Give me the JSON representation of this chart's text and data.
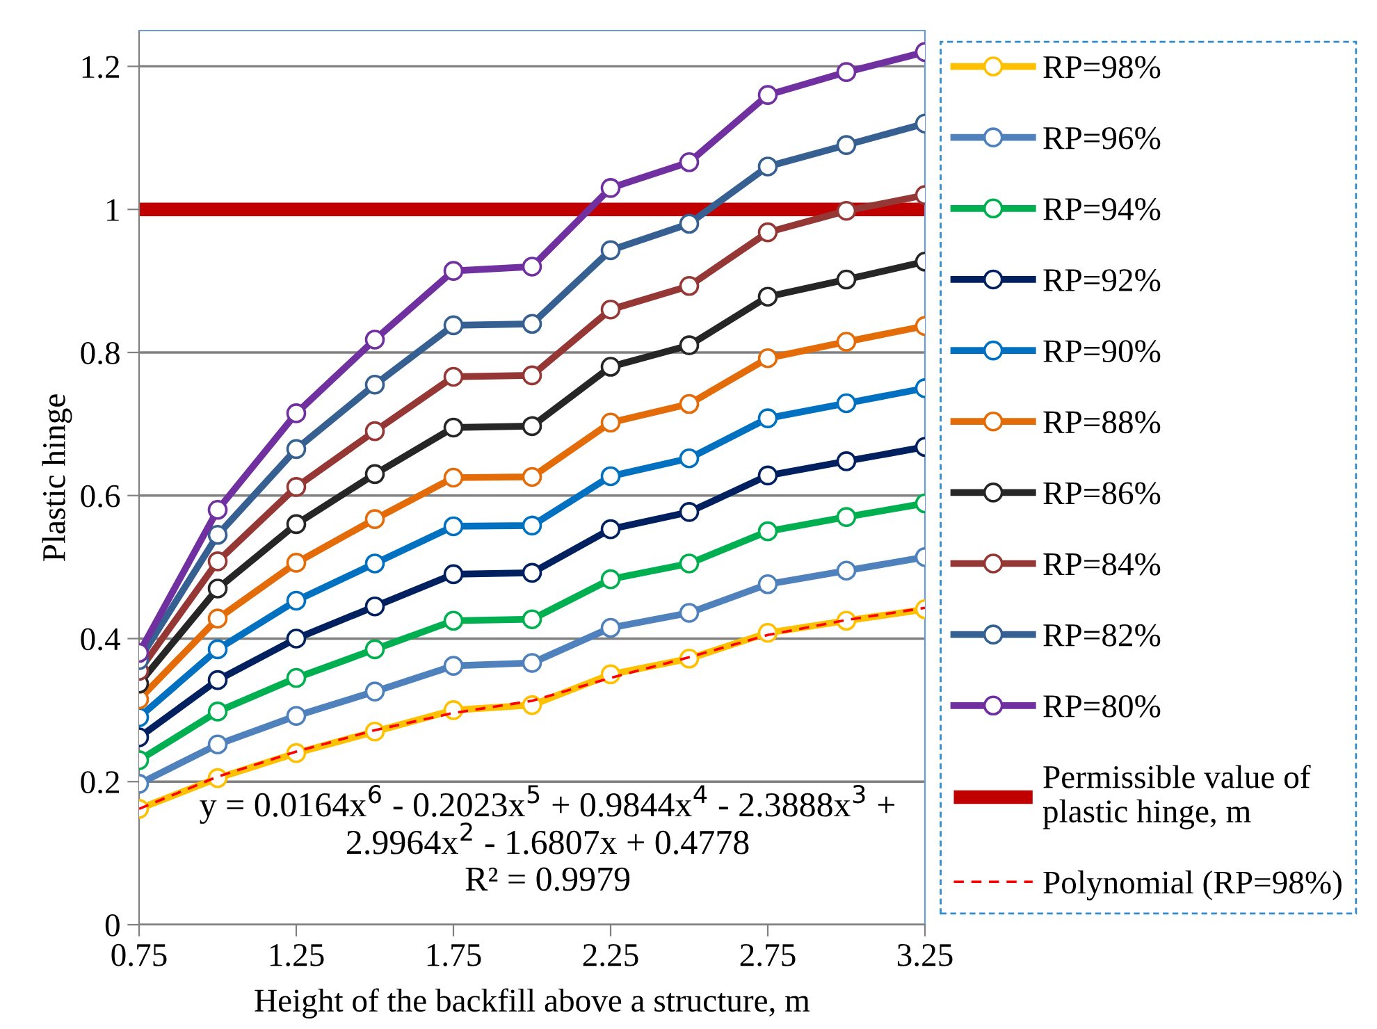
{
  "chart_data": {
    "type": "line",
    "xlabel": "Height of the backfill above a structure, m",
    "ylabel": "Plastic hinge",
    "x": [
      0.75,
      1.0,
      1.25,
      1.5,
      1.75,
      2.0,
      2.25,
      2.5,
      2.75,
      3.0,
      3.25
    ],
    "xlim": [
      0.75,
      3.25
    ],
    "xticks": [
      0.75,
      1.25,
      1.75,
      2.25,
      2.75,
      3.25
    ],
    "ylim": [
      0,
      1.25
    ],
    "yticks": [
      0,
      0.2,
      0.4,
      0.6,
      0.8,
      1,
      1.2
    ],
    "grid": "y",
    "legend": "right",
    "marker": "circle",
    "series": [
      {
        "name": "RP=98%",
        "color": "#ffc000",
        "values": [
          0.162,
          0.205,
          0.24,
          0.27,
          0.3,
          0.307,
          0.35,
          0.372,
          0.408,
          0.425,
          0.441
        ]
      },
      {
        "name": "RP=96%",
        "color": "#4f81bd",
        "values": [
          0.197,
          0.252,
          0.292,
          0.326,
          0.362,
          0.366,
          0.415,
          0.436,
          0.476,
          0.495,
          0.514
        ]
      },
      {
        "name": "RP=94%",
        "color": "#00b050",
        "values": [
          0.23,
          0.298,
          0.345,
          0.385,
          0.425,
          0.427,
          0.483,
          0.505,
          0.55,
          0.57,
          0.589
        ]
      },
      {
        "name": "RP=92%",
        "color": "#002060",
        "values": [
          0.262,
          0.342,
          0.4,
          0.445,
          0.49,
          0.492,
          0.553,
          0.577,
          0.628,
          0.648,
          0.668
        ]
      },
      {
        "name": "RP=90%",
        "color": "#0070c0",
        "values": [
          0.29,
          0.385,
          0.453,
          0.505,
          0.557,
          0.558,
          0.627,
          0.652,
          0.708,
          0.729,
          0.75
        ]
      },
      {
        "name": "RP=88%",
        "color": "#e36c09",
        "values": [
          0.315,
          0.428,
          0.506,
          0.567,
          0.625,
          0.626,
          0.702,
          0.728,
          0.792,
          0.815,
          0.837
        ]
      },
      {
        "name": "RP=86%",
        "color": "#262626",
        "values": [
          0.337,
          0.47,
          0.56,
          0.63,
          0.695,
          0.697,
          0.78,
          0.81,
          0.878,
          0.902,
          0.927
        ]
      },
      {
        "name": "RP=84%",
        "color": "#953735",
        "values": [
          0.355,
          0.508,
          0.612,
          0.69,
          0.766,
          0.768,
          0.86,
          0.893,
          0.968,
          0.998,
          1.02
        ]
      },
      {
        "name": "RP=82%",
        "color": "#376092",
        "values": [
          0.37,
          0.545,
          0.665,
          0.755,
          0.838,
          0.84,
          0.943,
          0.98,
          1.06,
          1.09,
          1.12
        ]
      },
      {
        "name": "RP=80%",
        "color": "#7030a0",
        "values": [
          0.38,
          0.58,
          0.715,
          0.818,
          0.914,
          0.92,
          1.03,
          1.066,
          1.16,
          1.192,
          1.22
        ]
      },
      {
        "name": "Polynomial (RP=98%)",
        "color": "#ff0000",
        "line_style": "dashed",
        "marker": "none",
        "values": [
          0.162,
          0.207,
          0.242,
          0.272,
          0.296,
          0.313,
          0.345,
          0.374,
          0.405,
          0.426,
          0.443
        ]
      }
    ],
    "ref_lines": [
      {
        "axis": "y",
        "value": 1,
        "label": "Permissible value of\nplastic hinge, m",
        "color": "#c00000"
      }
    ],
    "annotations": [
      "y = 0.0164x$^{6}$ - 0.2023x$^{5}$ + 0.9844x$^{4}$ - 2.3888x$^{3}$ +\n2.9964x$^{2}$ - 1.6807x + 0.4778\nR² = 0.9979"
    ]
  }
}
